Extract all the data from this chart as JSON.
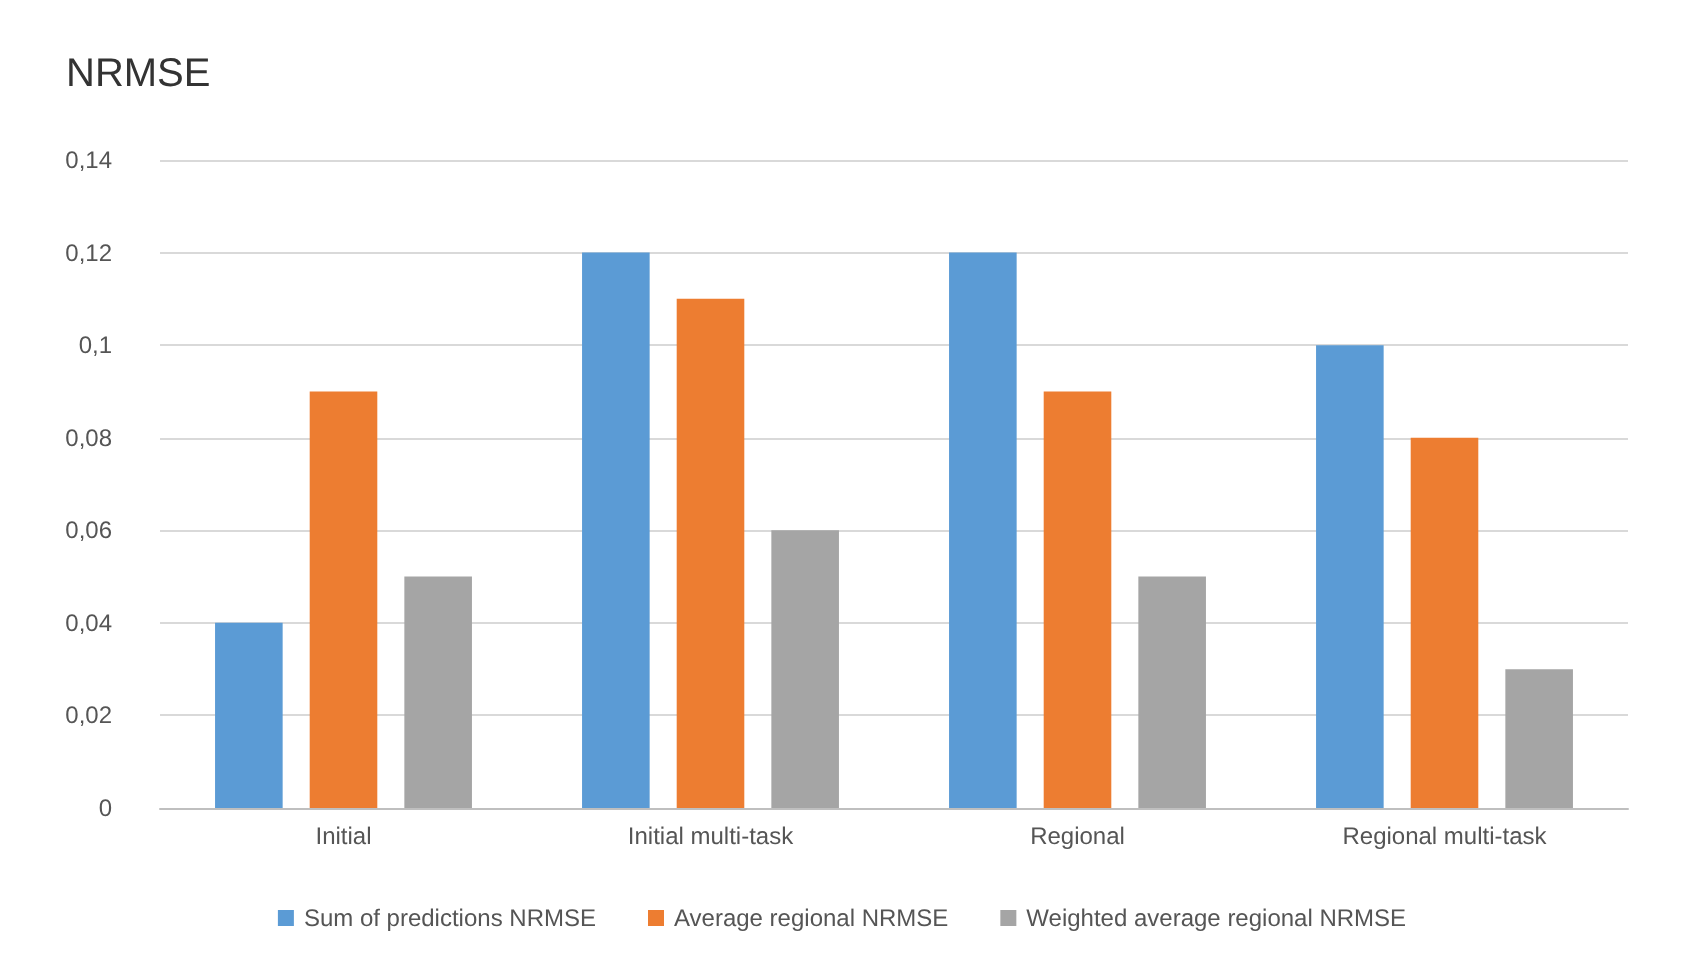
{
  "chart_data": {
    "type": "bar",
    "title": "NRMSE",
    "categories": [
      "Initial",
      "Initial multi-task",
      "Regional",
      "Regional multi-task"
    ],
    "series": [
      {
        "name": "Sum of predictions NRMSE",
        "color": "#5b9bd5",
        "values": [
          0.04,
          0.12,
          0.12,
          0.1
        ]
      },
      {
        "name": "Average regional NRMSE",
        "color": "#ed7d31",
        "values": [
          0.09,
          0.11,
          0.09,
          0.08
        ]
      },
      {
        "name": "Weighted average regional NRMSE",
        "color": "#a5a5a5",
        "values": [
          0.05,
          0.06,
          0.05,
          0.03
        ]
      }
    ],
    "ylim": [
      0,
      0.14
    ],
    "yticks": [
      {
        "value": 0,
        "label": "0"
      },
      {
        "value": 0.02,
        "label": "0,02"
      },
      {
        "value": 0.04,
        "label": "0,04"
      },
      {
        "value": 0.06,
        "label": "0,06"
      },
      {
        "value": 0.08,
        "label": "0,08"
      },
      {
        "value": 0.1,
        "label": "0,1"
      },
      {
        "value": 0.12,
        "label": "0,12"
      },
      {
        "value": 0.14,
        "label": "0,14"
      }
    ],
    "grid": "y",
    "legend": "bottom"
  }
}
